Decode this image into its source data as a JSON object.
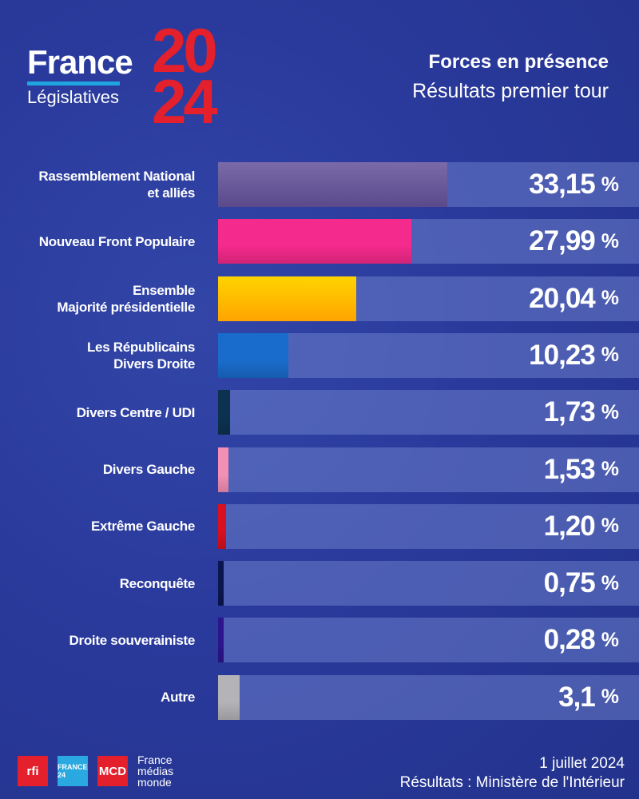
{
  "logo": {
    "brand": "France",
    "year_top": "20",
    "year_bottom": "24",
    "subtitle": "Législatives"
  },
  "header": {
    "title": "Forces en présence",
    "subtitle": "Résultats premier tour"
  },
  "chart_data": {
    "type": "bar",
    "orientation": "horizontal",
    "unit": "%",
    "categories": [
      "Rassemblement National et alliés",
      "Nouveau Front Populaire",
      "Ensemble Majorité présidentielle",
      "Les Républicains Divers Droite",
      "Divers Centre / UDI",
      "Divers Gauche",
      "Extrême Gauche",
      "Reconquête",
      "Droite souverainiste",
      "Autre"
    ],
    "values": [
      33.15,
      27.99,
      20.04,
      10.23,
      1.73,
      1.53,
      1.2,
      0.75,
      0.28,
      3.1
    ],
    "labels": [
      "33,15",
      "27,99",
      "20,04",
      "10,23",
      "1,73",
      "1,53",
      "1,20",
      "0,75",
      "0,28",
      "3,1"
    ],
    "colors": [
      "#6c5c9e",
      "#f42a8c",
      "#ffb800",
      "#1a6ccc",
      "#0c3250",
      "#f490b6",
      "#d81020",
      "#0a1650",
      "#2c148c",
      "#b4b4b8"
    ]
  },
  "footer": {
    "logos": [
      "rfi",
      "FRANCE 24",
      "MCD"
    ],
    "fmm": [
      "France",
      "médias",
      "monde"
    ],
    "date": "1 juillet 2024",
    "source": "Résultats : Ministère de l'Intérieur"
  }
}
